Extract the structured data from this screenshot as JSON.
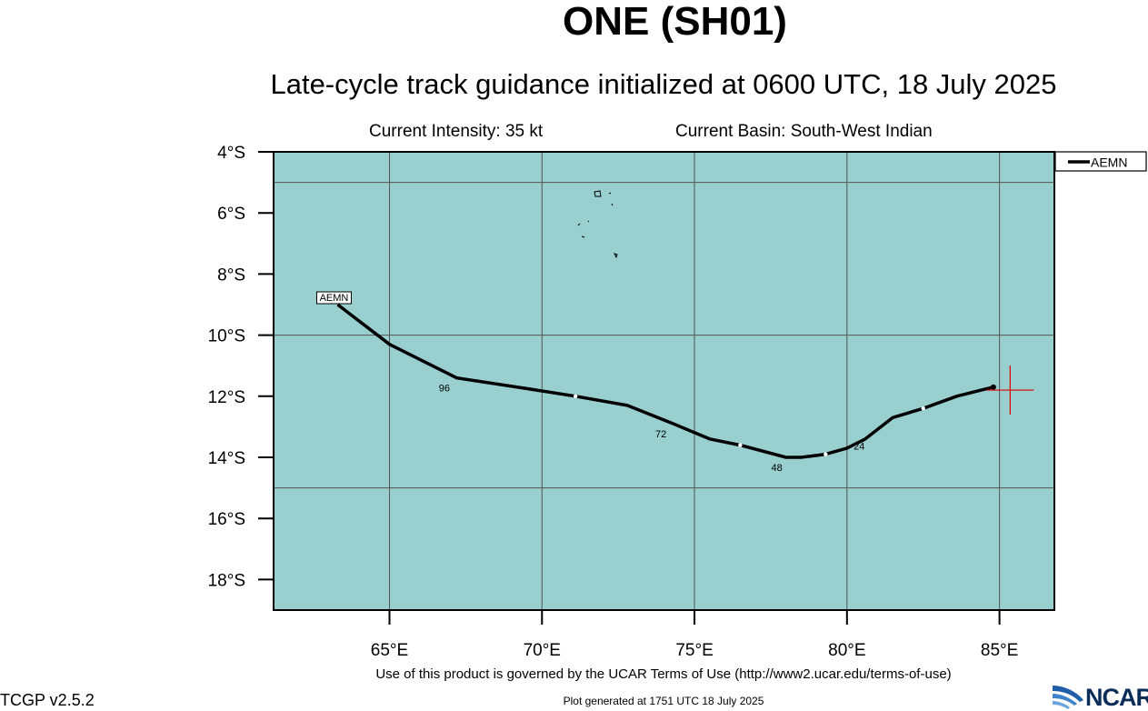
{
  "header": {
    "title": "ONE (SH01)",
    "subtitle": "Late-cycle track guidance initialized at 0600 UTC, 18 July 2025",
    "intensity": "Current Intensity: 35 kt",
    "basin": "Current Basin: South-West Indian"
  },
  "map": {
    "ocean_color": "#99cfcf",
    "lon_range": [
      61.2,
      86.8
    ],
    "lat_range": [
      -19.0,
      -4.0
    ],
    "y_ticks": [
      "4°S",
      "6°S",
      "8°S",
      "10°S",
      "12°S",
      "14°S",
      "16°S",
      "18°S"
    ],
    "x_ticks": [
      "65°E",
      "70°E",
      "75°E",
      "80°E",
      "85°E"
    ],
    "current_position": {
      "lon": 85.35,
      "lat": -11.8,
      "marker_color": "#e00000"
    }
  },
  "legend": {
    "entries": [
      "AEMN"
    ]
  },
  "tracks": [
    {
      "name": "AEMN",
      "label": "AEMN",
      "points": [
        [
          84.8,
          -11.7
        ],
        [
          83.6,
          -12.0
        ],
        [
          82.5,
          -12.4
        ],
        [
          81.5,
          -12.7
        ],
        [
          80.6,
          -13.4
        ],
        [
          80.0,
          -13.7
        ],
        [
          79.3,
          -13.9
        ],
        [
          78.5,
          -14.0
        ],
        [
          78.0,
          -14.0
        ],
        [
          76.5,
          -13.6
        ],
        [
          75.5,
          -13.4
        ],
        [
          74.3,
          -12.9
        ],
        [
          72.8,
          -12.3
        ],
        [
          71.1,
          -12.0
        ],
        [
          69.5,
          -11.75
        ],
        [
          67.2,
          -11.4
        ],
        [
          65.0,
          -10.3
        ],
        [
          63.3,
          -9.0
        ]
      ],
      "dots": [
        [
          82.5,
          -12.4
        ],
        [
          79.3,
          -13.9
        ],
        [
          76.5,
          -13.6
        ],
        [
          71.1,
          -12.0
        ]
      ],
      "hour_labels": [
        {
          "text": "24",
          "lon": 80.4,
          "lat": -13.45
        },
        {
          "text": "48",
          "lon": 77.7,
          "lat": -14.15
        },
        {
          "text": "72",
          "lon": 73.9,
          "lat": -13.05
        },
        {
          "text": "96",
          "lon": 66.8,
          "lat": -11.55
        }
      ]
    }
  ],
  "footer": {
    "terms": "Use of this product is governed by the UCAR Terms of Use (http://www2.ucar.edu/terms-of-use)",
    "generated": "Plot generated at 1751 UTC   18 July 2025",
    "version": "TCGP v2.5.2",
    "logo_text": "NCAR"
  }
}
